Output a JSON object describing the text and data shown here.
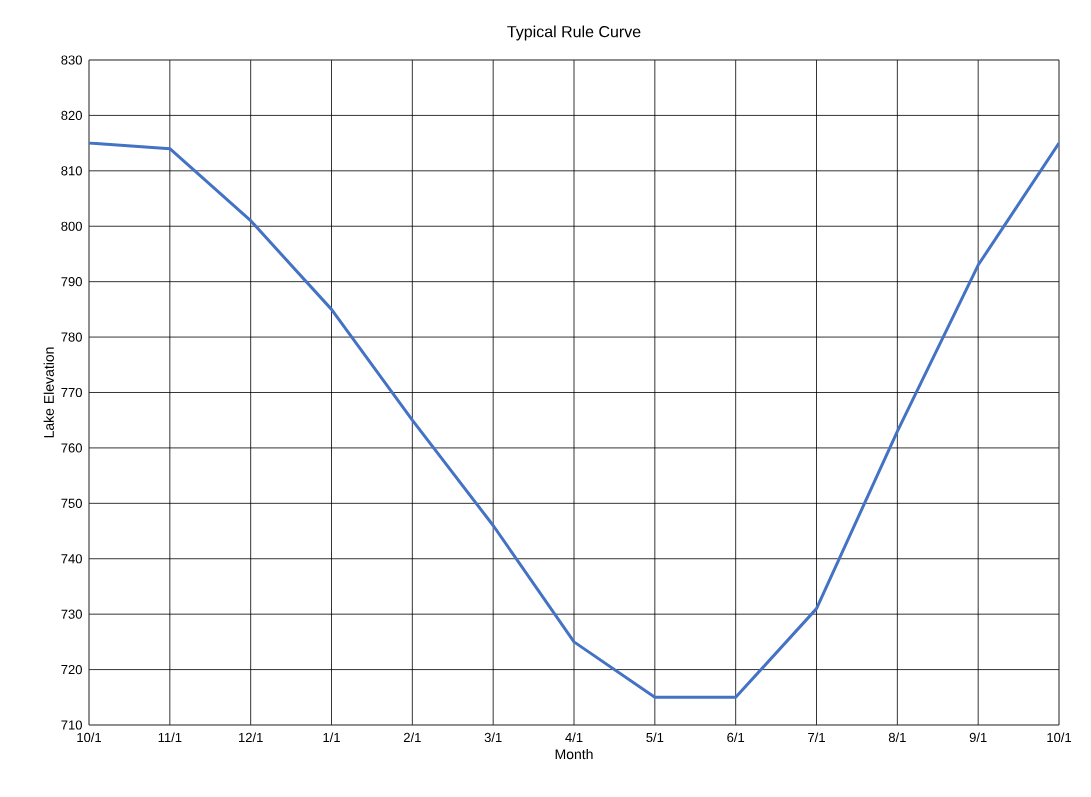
{
  "chart_data": {
    "type": "line",
    "title": "Typical Rule Curve",
    "xlabel": "Month",
    "ylabel": "Lake Elevation",
    "categories": [
      "10/1",
      "11/1",
      "12/1",
      "1/1",
      "2/1",
      "3/1",
      "4/1",
      "5/1",
      "6/1",
      "7/1",
      "8/1",
      "9/1",
      "10/1"
    ],
    "values": [
      815,
      814,
      801,
      785,
      765,
      746,
      725,
      715,
      715,
      731,
      763,
      793,
      815
    ],
    "color": "#4472c4",
    "marker": "none",
    "line_style": "solid",
    "ylim": [
      710,
      830
    ],
    "yticks": [
      710,
      720,
      730,
      740,
      750,
      760,
      770,
      780,
      790,
      800,
      810,
      820,
      830
    ],
    "grid": true
  }
}
